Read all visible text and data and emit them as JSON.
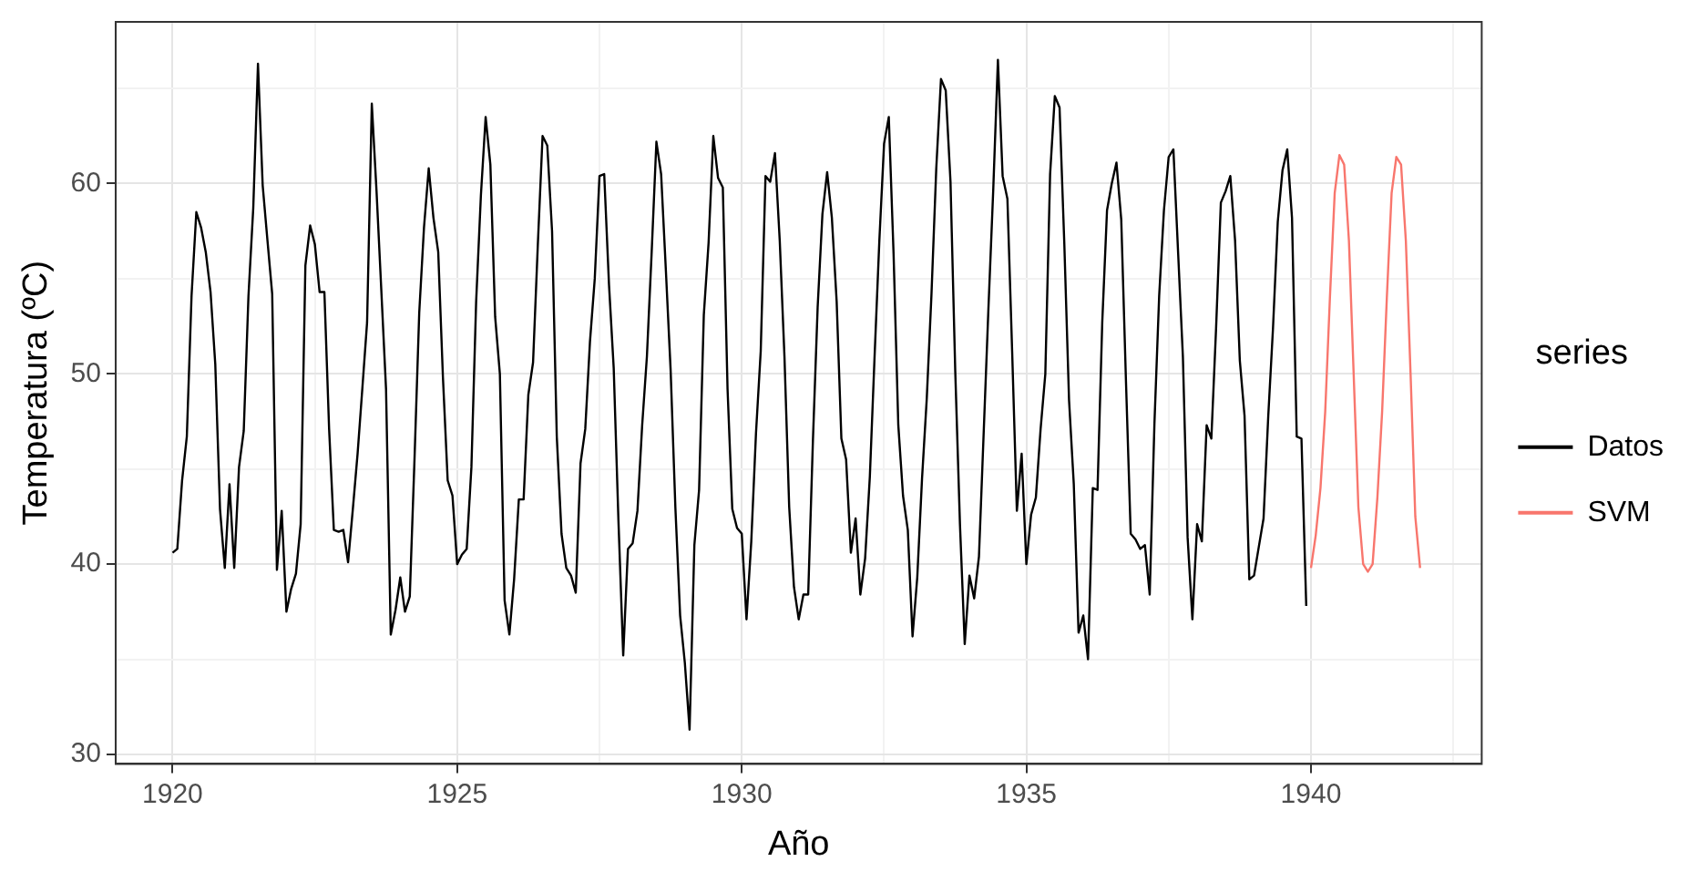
{
  "chart_data": {
    "type": "line",
    "xlabel": "Año",
    "ylabel": "Temperatura (ºC)",
    "legend_title": "series",
    "legend": "right",
    "grid": true,
    "marker": "none",
    "line_style": "solid",
    "xlim": [
      1919,
      1943
    ],
    "ylim": [
      29.5,
      68.5
    ],
    "xticks": [
      1920,
      {
        "value": 1922.5,
        "label": null
      },
      1925,
      {
        "value": 1927.5,
        "label": null
      },
      1930,
      {
        "value": 1932.5,
        "label": null
      },
      1935,
      {
        "value": 1937.5,
        "label": null
      },
      1940,
      {
        "value": 1942.5,
        "label": null
      }
    ],
    "yticks": [
      30,
      {
        "value": 35,
        "label": null
      },
      40,
      {
        "value": 45,
        "label": null
      },
      50,
      {
        "value": 55,
        "label": null
      },
      60,
      {
        "value": 65,
        "label": null
      }
    ],
    "series": [
      {
        "name": "Datos",
        "color": "#000000",
        "x": [
          1920,
          1920.083,
          1920.167,
          1920.25,
          1920.333,
          1920.417,
          1920.5,
          1920.583,
          1920.667,
          1920.75,
          1920.833,
          1920.917,
          1921,
          1921.083,
          1921.167,
          1921.25,
          1921.333,
          1921.417,
          1921.5,
          1921.583,
          1921.667,
          1921.75,
          1921.833,
          1921.917,
          1922,
          1922.083,
          1922.167,
          1922.25,
          1922.333,
          1922.417,
          1922.5,
          1922.583,
          1922.667,
          1922.75,
          1922.833,
          1922.917,
          1923,
          1923.083,
          1923.167,
          1923.25,
          1923.333,
          1923.417,
          1923.5,
          1923.583,
          1923.667,
          1923.75,
          1923.833,
          1923.917,
          1924,
          1924.083,
          1924.167,
          1924.25,
          1924.333,
          1924.417,
          1924.5,
          1924.583,
          1924.667,
          1924.75,
          1924.833,
          1924.917,
          1925,
          1925.083,
          1925.167,
          1925.25,
          1925.333,
          1925.417,
          1925.5,
          1925.583,
          1925.667,
          1925.75,
          1925.833,
          1925.917,
          1926,
          1926.083,
          1926.167,
          1926.25,
          1926.333,
          1926.417,
          1926.5,
          1926.583,
          1926.667,
          1926.75,
          1926.833,
          1926.917,
          1927,
          1927.083,
          1927.167,
          1927.25,
          1927.333,
          1927.417,
          1927.5,
          1927.583,
          1927.667,
          1927.75,
          1927.833,
          1927.917,
          1928,
          1928.083,
          1928.167,
          1928.25,
          1928.333,
          1928.417,
          1928.5,
          1928.583,
          1928.667,
          1928.75,
          1928.833,
          1928.917,
          1929,
          1929.083,
          1929.167,
          1929.25,
          1929.333,
          1929.417,
          1929.5,
          1929.583,
          1929.667,
          1929.75,
          1929.833,
          1929.917,
          1930,
          1930.083,
          1930.167,
          1930.25,
          1930.333,
          1930.417,
          1930.5,
          1930.583,
          1930.667,
          1930.75,
          1930.833,
          1930.917,
          1931,
          1931.083,
          1931.167,
          1931.25,
          1931.333,
          1931.417,
          1931.5,
          1931.583,
          1931.667,
          1931.75,
          1931.833,
          1931.917,
          1932,
          1932.083,
          1932.167,
          1932.25,
          1932.333,
          1932.417,
          1932.5,
          1932.583,
          1932.667,
          1932.75,
          1932.833,
          1932.917,
          1933,
          1933.083,
          1933.167,
          1933.25,
          1933.333,
          1933.417,
          1933.5,
          1933.583,
          1933.667,
          1933.75,
          1933.833,
          1933.917,
          1934,
          1934.083,
          1934.167,
          1934.25,
          1934.333,
          1934.417,
          1934.5,
          1934.583,
          1934.667,
          1934.75,
          1934.833,
          1934.917,
          1935,
          1935.083,
          1935.167,
          1935.25,
          1935.333,
          1935.417,
          1935.5,
          1935.583,
          1935.667,
          1935.75,
          1935.833,
          1935.917,
          1936,
          1936.083,
          1936.167,
          1936.25,
          1936.333,
          1936.417,
          1936.5,
          1936.583,
          1936.667,
          1936.75,
          1936.833,
          1936.917,
          1937,
          1937.083,
          1937.167,
          1937.25,
          1937.333,
          1937.417,
          1937.5,
          1937.583,
          1937.667,
          1937.75,
          1937.833,
          1937.917,
          1938,
          1938.083,
          1938.167,
          1938.25,
          1938.333,
          1938.417,
          1938.5,
          1938.583,
          1938.667,
          1938.75,
          1938.833,
          1938.917,
          1939,
          1939.083,
          1939.167,
          1939.25,
          1939.333,
          1939.417,
          1939.5,
          1939.583,
          1939.667,
          1939.75,
          1939.833,
          1939.917
        ],
        "values": [
          40.6,
          40.8,
          44.4,
          46.7,
          54.1,
          58.5,
          57.7,
          56.4,
          54.3,
          50.5,
          42.9,
          39.8,
          44.2,
          39.8,
          45.1,
          47.0,
          54.1,
          58.7,
          66.3,
          59.9,
          57.0,
          54.2,
          39.7,
          42.8,
          37.5,
          38.7,
          39.5,
          42.1,
          55.7,
          57.8,
          56.8,
          54.3,
          54.3,
          47.1,
          41.8,
          41.7,
          41.8,
          40.1,
          42.9,
          45.8,
          49.2,
          52.7,
          64.2,
          59.6,
          54.4,
          49.2,
          36.3,
          37.6,
          39.3,
          37.5,
          38.3,
          45.5,
          53.2,
          57.7,
          60.8,
          58.2,
          56.4,
          49.8,
          44.4,
          43.6,
          40.0,
          40.5,
          40.8,
          45.1,
          53.8,
          59.4,
          63.5,
          61.0,
          53.0,
          50.0,
          38.1,
          36.3,
          39.2,
          43.4,
          43.4,
          48.9,
          50.6,
          56.8,
          62.5,
          62.0,
          57.5,
          46.7,
          41.6,
          39.8,
          39.4,
          38.5,
          45.3,
          47.1,
          51.7,
          55.0,
          60.4,
          60.5,
          54.7,
          50.3,
          42.3,
          35.2,
          40.8,
          41.1,
          42.8,
          47.3,
          50.9,
          56.4,
          62.2,
          60.5,
          55.4,
          50.2,
          43.0,
          37.3,
          34.8,
          31.3,
          41.0,
          43.9,
          53.1,
          56.9,
          62.5,
          60.3,
          59.8,
          49.2,
          42.9,
          41.9,
          41.6,
          37.1,
          41.2,
          46.9,
          51.2,
          60.4,
          60.1,
          61.6,
          57.0,
          50.9,
          43.0,
          38.8,
          37.1,
          38.4,
          38.4,
          46.5,
          53.5,
          58.4,
          60.6,
          58.2,
          53.8,
          46.6,
          45.5,
          40.6,
          42.4,
          38.4,
          40.3,
          44.6,
          50.9,
          57.0,
          62.1,
          63.5,
          56.3,
          47.3,
          43.6,
          41.8,
          36.2,
          39.3,
          44.5,
          48.7,
          54.2,
          60.8,
          65.5,
          64.9,
          60.1,
          50.2,
          42.1,
          35.8,
          39.4,
          38.2,
          40.4,
          46.9,
          53.4,
          59.6,
          66.5,
          60.4,
          59.2,
          51.2,
          42.8,
          45.8,
          40.0,
          42.6,
          43.5,
          47.1,
          50.0,
          60.5,
          64.6,
          64.0,
          56.8,
          48.6,
          44.2,
          36.4,
          37.3,
          35.0,
          44.0,
          43.9,
          52.7,
          58.6,
          60.0,
          61.1,
          58.1,
          49.6,
          41.6,
          41.3,
          40.8,
          41.0,
          38.4,
          47.4,
          54.1,
          58.6,
          61.4,
          61.8,
          56.3,
          50.9,
          41.4,
          37.1,
          42.1,
          41.2,
          47.3,
          46.6,
          52.4,
          59.0,
          59.6,
          60.4,
          57.0,
          50.7,
          47.8,
          39.2,
          39.4,
          40.9,
          42.4,
          47.8,
          52.4,
          58.0,
          60.7,
          61.8,
          58.2,
          46.7,
          46.6,
          37.8
        ]
      },
      {
        "name": "SVM",
        "color": "#f8766d",
        "x": [
          1940,
          1940.083,
          1940.167,
          1940.25,
          1940.333,
          1940.417,
          1940.5,
          1940.583,
          1940.667,
          1940.75,
          1940.833,
          1940.917,
          1941,
          1941.083,
          1941.167,
          1941.25,
          1941.333,
          1941.417,
          1941.5,
          1941.583,
          1941.667,
          1941.75,
          1941.833,
          1941.917
        ],
        "values": [
          39.8,
          41.5,
          44.0,
          48.0,
          54.0,
          59.5,
          61.5,
          61.0,
          57.0,
          50.0,
          43.0,
          40.0,
          39.6,
          40.0,
          43.5,
          48.0,
          54.0,
          59.5,
          61.4,
          61.0,
          57.0,
          50.0,
          42.5,
          39.8
        ]
      }
    ]
  }
}
